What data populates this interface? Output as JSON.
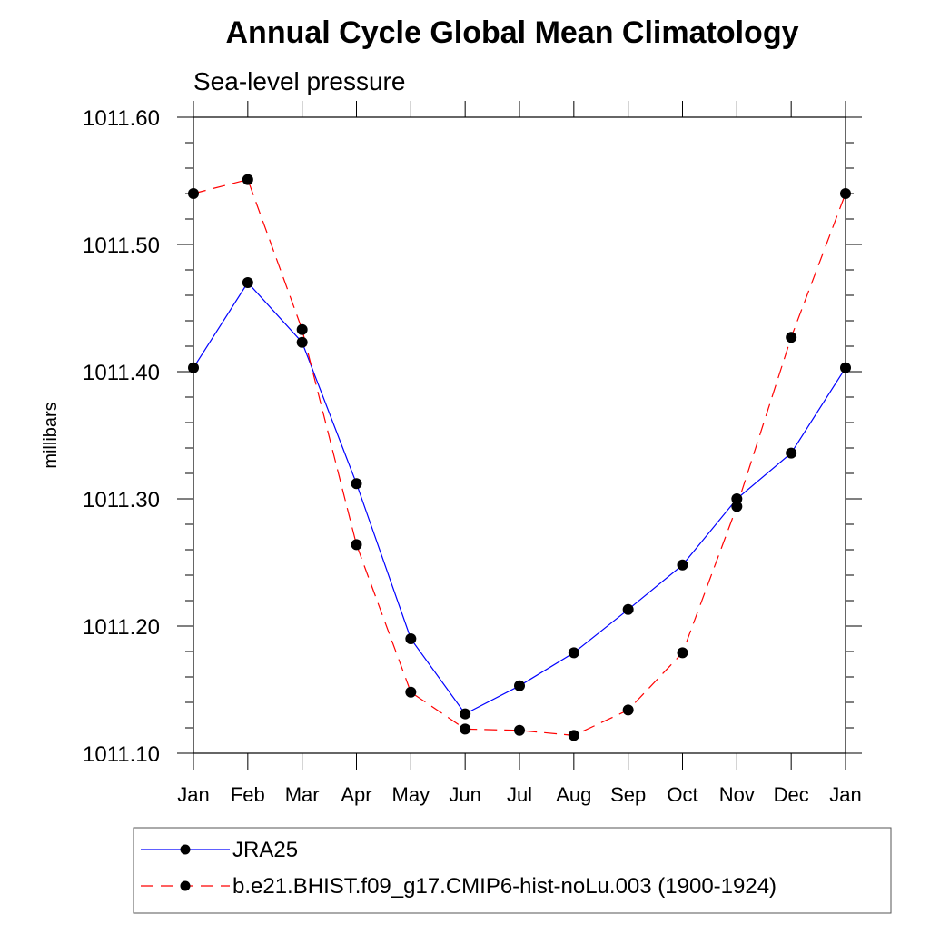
{
  "chart_data": {
    "type": "line",
    "title": "Annual Cycle Global Mean Climatology",
    "subtitle": "Sea-level pressure",
    "xlabel": "",
    "ylabel": "millibars",
    "categories": [
      "Jan",
      "Feb",
      "Mar",
      "Apr",
      "May",
      "Jun",
      "Jul",
      "Aug",
      "Sep",
      "Oct",
      "Nov",
      "Dec",
      "Jan"
    ],
    "ylim": [
      1011.1,
      1011.6
    ],
    "yticks": [
      1011.1,
      1011.2,
      1011.3,
      1011.4,
      1011.5,
      1011.6
    ],
    "ytick_labels": [
      "1011.10",
      "1011.20",
      "1011.30",
      "1011.40",
      "1011.50",
      "1011.60"
    ],
    "grid": false,
    "legend_position": "bottom",
    "series": [
      {
        "name": "JRA25",
        "color": "#0000ff",
        "style": "solid",
        "marker": "filled-circle",
        "values": [
          1011.403,
          1011.47,
          1011.423,
          1011.312,
          1011.19,
          1011.131,
          1011.153,
          1011.179,
          1011.213,
          1011.248,
          1011.3,
          1011.336,
          1011.403
        ]
      },
      {
        "name": "b.e21.BHIST.f09_g17.CMIP6-hist-noLu.003 (1900-1924)",
        "color": "#ff0000",
        "style": "dashed",
        "marker": "filled-circle",
        "values": [
          1011.54,
          1011.551,
          1011.433,
          1011.264,
          1011.148,
          1011.119,
          1011.118,
          1011.114,
          1011.134,
          1011.179,
          1011.294,
          1011.427,
          1011.54
        ]
      }
    ]
  }
}
